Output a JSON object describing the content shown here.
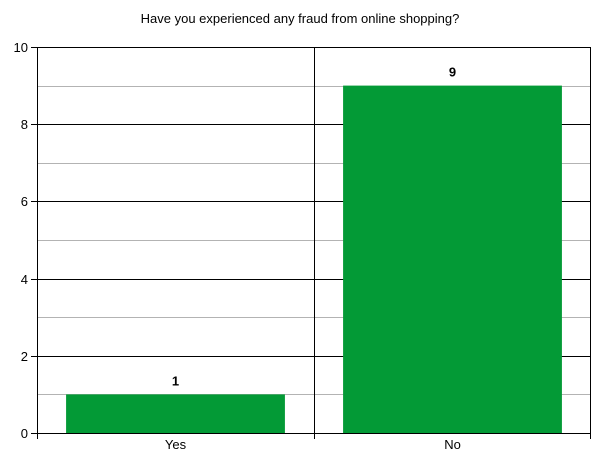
{
  "chart_data": {
    "type": "bar",
    "title": "Have you experienced any  fraud from online shopping?",
    "categories": [
      "Yes",
      "No"
    ],
    "values": [
      1,
      9
    ],
    "data_labels": [
      "1",
      "9"
    ],
    "ylim": [
      0,
      10
    ],
    "y_ticks": [
      0,
      2,
      4,
      6,
      8,
      10
    ],
    "y_tick_labels": [
      "0",
      "2",
      "4",
      "6",
      "8",
      "10"
    ],
    "minor_grid_step": 1,
    "grid": true,
    "legend": false,
    "bar_color": "#039a36",
    "major_grid_color": "#000000",
    "minor_grid_color": "#b3b3b3",
    "xlabel": "",
    "ylabel": ""
  }
}
